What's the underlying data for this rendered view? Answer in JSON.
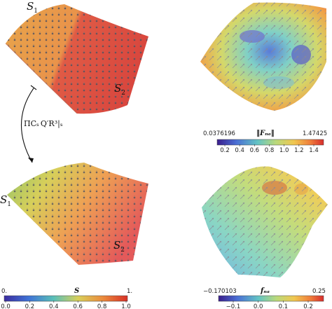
{
  "panels": {
    "top_left": {
      "label_a": "S",
      "label_a_sub": "1",
      "label_b": "S",
      "label_b_sub": "2"
    },
    "bottom_left": {
      "label_a": "S",
      "label_a_sub": "1",
      "label_b": "S",
      "label_b_sub": "2"
    }
  },
  "map_label": "ΠCₛ Q′R³|ₛ",
  "colorbars": {
    "left": {
      "title": "S",
      "min_label": "0.",
      "max_label": "1.",
      "ticks": [
        "0.0",
        "0.2",
        "0.4",
        "0.6",
        "0.8",
        "1.0"
      ]
    },
    "right_top": {
      "title": "‖Fₙₐ‖",
      "min_label": "0.0376196",
      "max_label": "1.47425",
      "ticks": [
        "0.2",
        "0.4",
        "0.6",
        "0.8",
        "1.0",
        "1.2",
        "1.4"
      ]
    },
    "right_bottom": {
      "title": "fₙₐ",
      "min_label": "−0.170103",
      "max_label": "0.25",
      "ticks": [
        "−0.1",
        "0.0",
        "0.1",
        "0.2"
      ]
    }
  },
  "colors": {
    "orange": "#e9a24a",
    "red": "#de5448",
    "mesh_dot": "#555566"
  }
}
